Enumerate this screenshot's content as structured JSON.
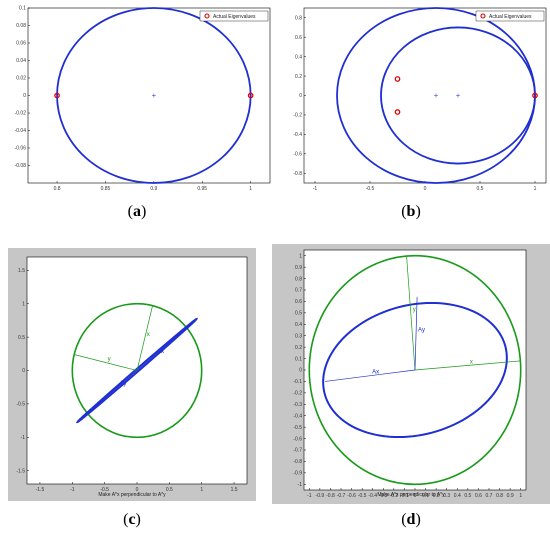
{
  "chart_data": [
    {
      "panel": "a",
      "type": "scatter",
      "caption": "a",
      "xlim": [
        0.77,
        1.02
      ],
      "ylim": [
        -0.1,
        0.1
      ],
      "xticks": [
        0.8,
        0.85,
        0.9,
        0.95,
        1
      ],
      "xtick_labels": [
        "0.8",
        "0.85",
        "0.9",
        "0.95",
        "1"
      ],
      "yticks": [
        -0.08,
        -0.06,
        -0.04,
        -0.02,
        0,
        0.02,
        0.04,
        0.06,
        0.08,
        0.1
      ],
      "ytick_labels": [
        "-0.08",
        "-0.06",
        "-0.04",
        "-0.02",
        "0",
        "0.02",
        "0.04",
        "0.06",
        "0.08",
        "0.1"
      ],
      "legend": "Actual Eigenvalues",
      "legend_position": "top-right",
      "circles": [
        {
          "cx": 0.9,
          "cy": 0,
          "r": 0.1,
          "color": "#1f2fd1"
        }
      ],
      "centers": [
        {
          "x": 0.9,
          "y": 0
        }
      ],
      "eigenvalues": [
        {
          "x": 0.8,
          "y": 0
        },
        {
          "x": 1.0,
          "y": 0
        }
      ]
    },
    {
      "panel": "b",
      "type": "scatter",
      "caption": "b",
      "xlim": [
        -1.1,
        1.1
      ],
      "ylim": [
        -0.9,
        0.9
      ],
      "xticks": [
        -1,
        -0.5,
        0,
        0.5,
        1
      ],
      "xtick_labels": [
        "-1",
        "-0.5",
        "0",
        "0.5",
        "1"
      ],
      "yticks": [
        -0.8,
        -0.6,
        -0.4,
        -0.2,
        0,
        0.2,
        0.4,
        0.6,
        0.8
      ],
      "ytick_labels": [
        "-0.8",
        "-0.6",
        "-0.4",
        "-0.2",
        "0",
        "0.2",
        "0.4",
        "0.6",
        "0.8"
      ],
      "legend": "Actual Eigenvalues",
      "legend_position": "top-right",
      "circles": [
        {
          "cx": 0.1,
          "cy": 0,
          "r": 0.9,
          "color": "#1f2fd1"
        },
        {
          "cx": 0.3,
          "cy": 0,
          "r": 0.7,
          "color": "#1f2fd1"
        }
      ],
      "centers": [
        {
          "x": 0.1,
          "y": 0
        },
        {
          "x": 0.3,
          "y": 0
        }
      ],
      "eigenvalues": [
        {
          "x": 1.0,
          "y": 0
        },
        {
          "x": -0.25,
          "y": 0.17
        },
        {
          "x": -0.25,
          "y": -0.17
        }
      ]
    },
    {
      "panel": "c",
      "type": "line",
      "caption": "c",
      "xlabel": "Make A*x perpendicular to A*y",
      "xlim": [
        -1.7,
        1.7
      ],
      "ylim": [
        -1.7,
        1.7
      ],
      "xticks": [
        -1.5,
        -1,
        -0.5,
        0,
        0.5,
        1,
        1.5
      ],
      "xtick_labels": [
        "-1.5",
        "-1",
        "-0.5",
        "0",
        "0.5",
        "1",
        "1.5"
      ],
      "yticks": [
        -1.5,
        -1,
        -0.5,
        0,
        0.5,
        1,
        1.5
      ],
      "ytick_labels": [
        "-1.5",
        "-1",
        "-0.5",
        "0",
        "0.5",
        "1",
        "1.5"
      ],
      "unit_circle": {
        "r": 1,
        "color": "#1a9a1a"
      },
      "ellipse": {
        "a": 1.2,
        "b": 0.02,
        "angle_deg": 40,
        "color": "#1f2fd1"
      },
      "vectors": [
        {
          "label": "x",
          "end": [
            0.24,
            0.97
          ],
          "color": "#1a9a1a"
        },
        {
          "label": "y",
          "end": [
            -0.97,
            0.24
          ],
          "color": "#1a9a1a"
        },
        {
          "label": "Ax",
          "end": [
            0.56,
            0.47
          ],
          "color": "#1f2fd1"
        },
        {
          "label": "Ay",
          "end": [
            -0.6,
            -0.5
          ],
          "color": "#1f2fd1"
        }
      ]
    },
    {
      "panel": "d",
      "type": "line",
      "caption": "d",
      "xlabel": "Make A*x perpendicular to A*y",
      "xlim": [
        -1.05,
        1.05
      ],
      "ylim": [
        -1.05,
        1.05
      ],
      "xticks": [
        -1,
        -0.9,
        -0.8,
        -0.7,
        -0.6,
        -0.5,
        -0.4,
        -0.3,
        -0.2,
        -0.1,
        0,
        0.1,
        0.2,
        0.3,
        0.4,
        0.5,
        0.6,
        0.7,
        0.8,
        0.9,
        1
      ],
      "xtick_labels": [
        "-1",
        "-0.9",
        "-0.8",
        "-0.7",
        "-0.6",
        "-0.5",
        "-0.4",
        "-0.3",
        "-0.2",
        "-0.1",
        "0",
        "0.1",
        "0.2",
        "0.3",
        "0.4",
        "0.5",
        "0.6",
        "0.7",
        "0.8",
        "0.9",
        "1"
      ],
      "yticks": [
        -1,
        -0.9,
        -0.8,
        -0.7,
        -0.6,
        -0.5,
        -0.4,
        -0.3,
        -0.2,
        -0.1,
        0,
        0.1,
        0.2,
        0.3,
        0.4,
        0.5,
        0.6,
        0.7,
        0.8,
        0.9,
        1
      ],
      "ytick_labels": [
        "-1",
        "-0.9",
        "-0.8",
        "-0.7",
        "-0.6",
        "-0.5",
        "-0.4",
        "-0.3",
        "-0.2",
        "-0.1",
        "0",
        "0.1",
        "0.2",
        "0.3",
        "0.4",
        "0.5",
        "0.6",
        "0.7",
        "0.8",
        "0.9",
        "1"
      ],
      "unit_circle": {
        "r": 1,
        "color": "#1a9a1a"
      },
      "ellipse": {
        "a": 0.88,
        "b": 0.57,
        "angle_deg": 12,
        "color": "#1f2fd1"
      },
      "vectors": [
        {
          "label": "x",
          "end": [
            1.0,
            0.08
          ],
          "color": "#1a9a1a"
        },
        {
          "label": "y",
          "end": [
            -0.08,
            1.0
          ],
          "color": "#1a9a1a"
        },
        {
          "label": "Ax",
          "end": [
            -0.85,
            -0.1
          ],
          "color": "#1f2fd1"
        },
        {
          "label": "Ay",
          "end": [
            0.02,
            0.64
          ],
          "color": "#1f2fd1"
        }
      ]
    }
  ]
}
